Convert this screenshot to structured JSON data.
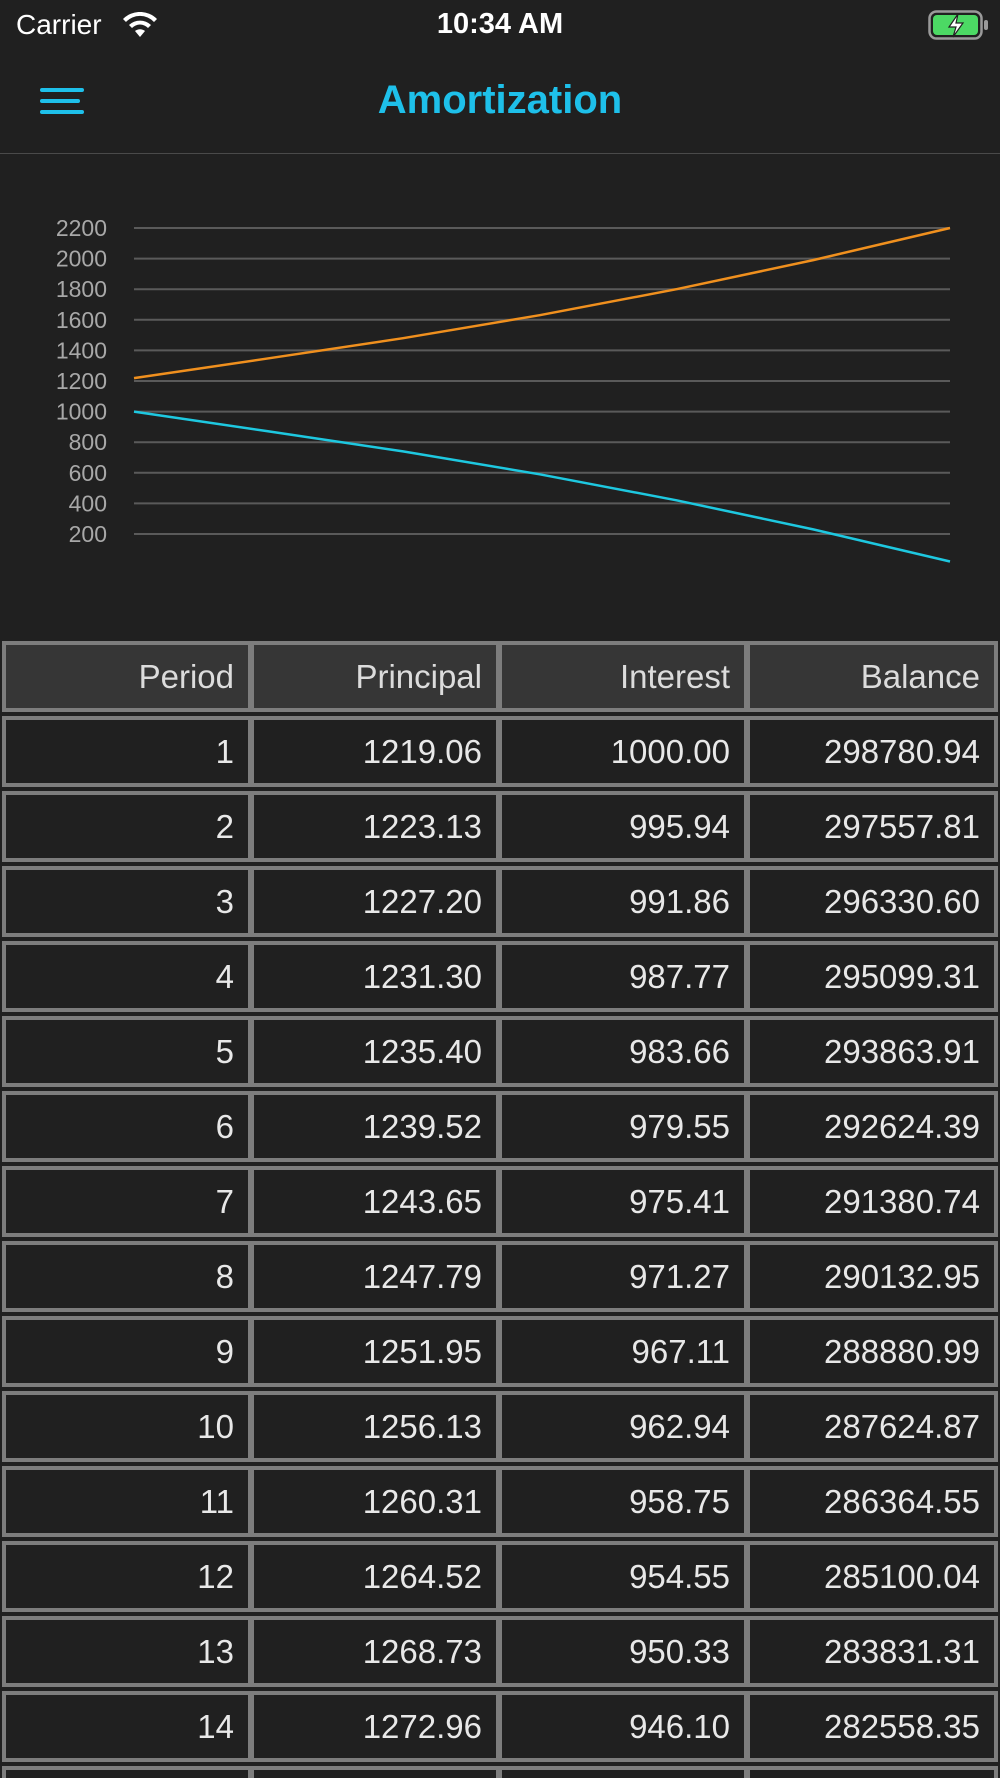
{
  "status_bar": {
    "carrier": "Carrier",
    "time": "10:34 AM",
    "wifi_icon": "wifi-icon",
    "battery_icon": "battery-charging-icon",
    "battery_color": "#4cd964"
  },
  "nav": {
    "title": "Amortization",
    "menu_icon": "hamburger-menu-icon",
    "accent": "#1ec0ea"
  },
  "chart_data": {
    "type": "line",
    "title": "",
    "xlabel": "",
    "ylabel": "",
    "y_ticks": [
      "200",
      "400",
      "600",
      "800",
      "1000",
      "1200",
      "1400",
      "1600",
      "1800",
      "2000",
      "2200"
    ],
    "ylim": [
      200,
      2200
    ],
    "legend": "none",
    "grid": true,
    "series": [
      {
        "color": "#f0901e",
        "x": [
          1,
          30,
          60,
          90,
          120,
          150,
          180
        ],
        "values": [
          1219.06,
          1346,
          1480,
          1630,
          1800,
          1990,
          2200
        ]
      },
      {
        "color": "#1ec8e0",
        "x": [
          1,
          30,
          60,
          90,
          120,
          150,
          180
        ],
        "values": [
          1000.0,
          873,
          740,
          590,
          420,
          230,
          20
        ]
      }
    ]
  },
  "table": {
    "columns": [
      "Period",
      "Principal",
      "Interest",
      "Balance"
    ],
    "rows": [
      [
        "1",
        "1219.06",
        "1000.00",
        "298780.94"
      ],
      [
        "2",
        "1223.13",
        "995.94",
        "297557.81"
      ],
      [
        "3",
        "1227.20",
        "991.86",
        "296330.60"
      ],
      [
        "4",
        "1231.30",
        "987.77",
        "295099.31"
      ],
      [
        "5",
        "1235.40",
        "983.66",
        "293863.91"
      ],
      [
        "6",
        "1239.52",
        "979.55",
        "292624.39"
      ],
      [
        "7",
        "1243.65",
        "975.41",
        "291380.74"
      ],
      [
        "8",
        "1247.79",
        "971.27",
        "290132.95"
      ],
      [
        "9",
        "1251.95",
        "967.11",
        "288880.99"
      ],
      [
        "10",
        "1256.13",
        "962.94",
        "287624.87"
      ],
      [
        "11",
        "1260.31",
        "958.75",
        "286364.55"
      ],
      [
        "12",
        "1264.52",
        "954.55",
        "285100.04"
      ],
      [
        "13",
        "1268.73",
        "950.33",
        "283831.31"
      ],
      [
        "14",
        "1272.96",
        "946.10",
        "282558.35"
      ],
      [
        "",
        "",
        "",
        ""
      ]
    ]
  }
}
